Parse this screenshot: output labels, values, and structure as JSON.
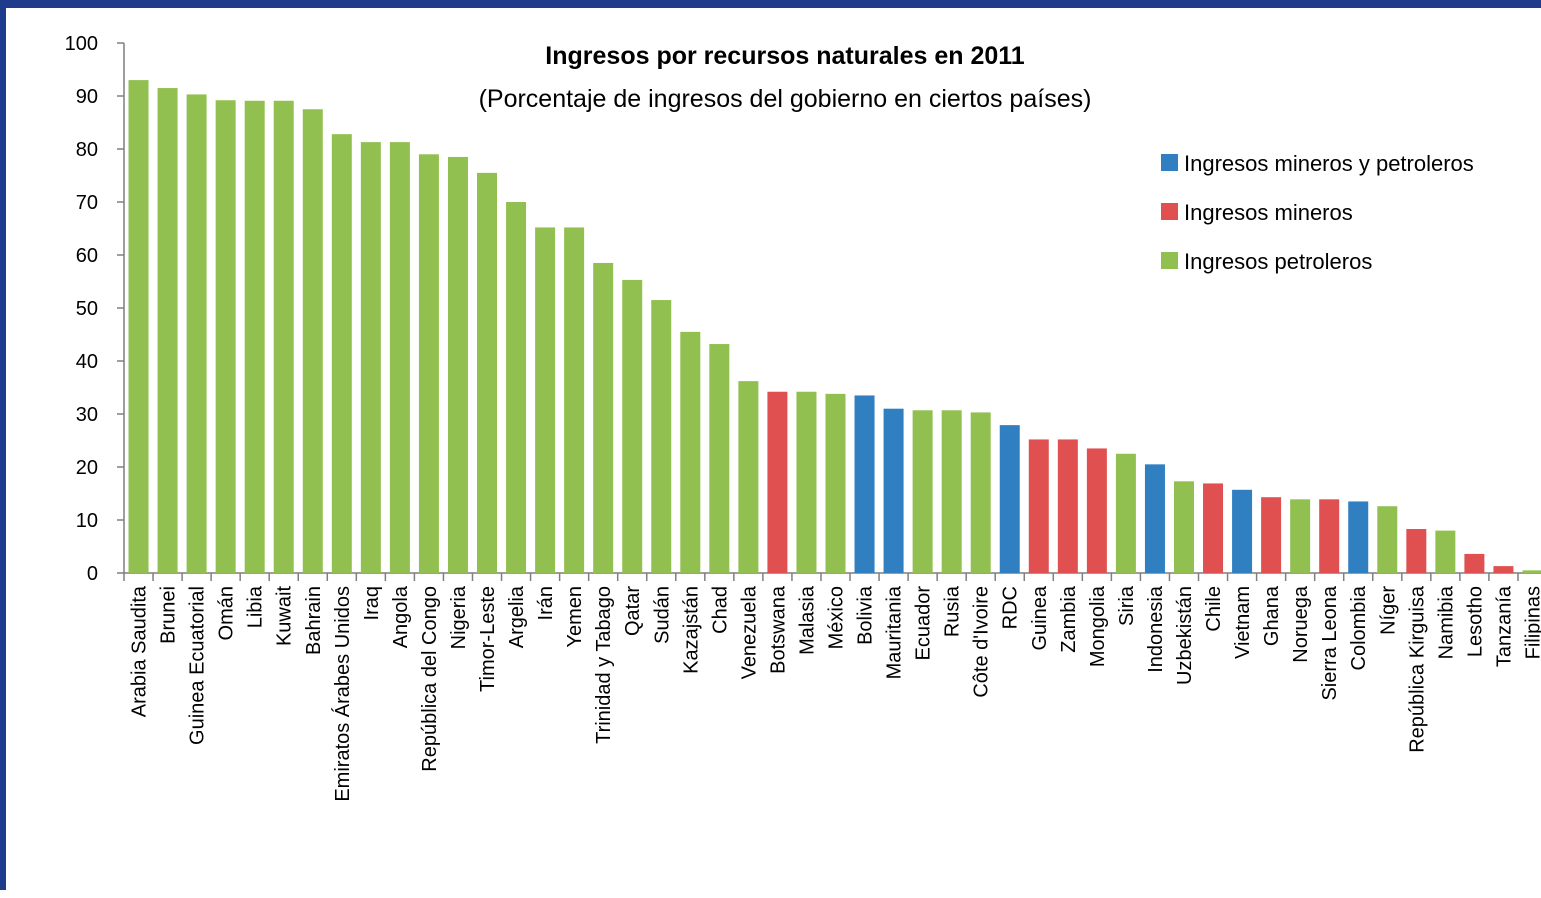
{
  "chart_data": {
    "type": "bar",
    "title": "Ingresos por recursos naturales en 2011",
    "subtitle": "(Porcentaje de ingresos del gobierno en ciertos países)",
    "xlabel": "",
    "ylabel": "",
    "ylim": [
      0,
      100
    ],
    "yticks": [
      0,
      10,
      20,
      30,
      40,
      50,
      60,
      70,
      80,
      90,
      100
    ],
    "grid": false,
    "legend_position": "right",
    "series": [
      {
        "key": "mp",
        "name": "Ingresos mineros y petroleros",
        "color": "#2f7fc1"
      },
      {
        "key": "m",
        "name": "Ingresos mineros",
        "color": "#e05050"
      },
      {
        "key": "p",
        "name": "Ingresos petroleros",
        "color": "#92c050"
      }
    ],
    "categories": [
      "Arabia Saudita",
      "Brunei",
      "Guinea Ecuatorial",
      "Omán",
      "Libia",
      "Kuwait",
      "Bahrain",
      "Emiratos Árabes Unidos",
      "Iraq",
      "Angola",
      "República del Congo",
      "Nigeria",
      "Timor-Leste",
      "Argelia",
      "Irán",
      "Yemen",
      "Trinidad y Tabago",
      "Qatar",
      "Sudán",
      "Kazajstán",
      "Chad",
      "Venezuela",
      "Botswana",
      "Malasia",
      "México",
      "Bolivia",
      "Mauritania",
      "Ecuador",
      "Rusia",
      "Côte d'Ivoire",
      "RDC",
      "Guinea",
      "Zambia",
      "Mongolia",
      "Siria",
      "Indonesia",
      "Uzbekistán",
      "Chile",
      "Vietnam",
      "Ghana",
      "Noruega",
      "Sierra Leona",
      "Colombia",
      "Níger",
      "República Kirguisa",
      "Namibia",
      "Lesotho",
      "Tanzanía",
      "Filipinas"
    ],
    "values": [
      93,
      91.5,
      90.3,
      89.2,
      89.1,
      89.1,
      87.5,
      82.8,
      81.3,
      81.3,
      79,
      78.5,
      75.5,
      70,
      65.2,
      65.2,
      58.5,
      55.3,
      51.5,
      45.5,
      43.2,
      36.2,
      34.2,
      34.2,
      33.8,
      33.5,
      31,
      30.7,
      30.7,
      30.3,
      27.9,
      25.2,
      25.2,
      23.5,
      22.5,
      20.5,
      17.3,
      16.9,
      15.7,
      14.3,
      13.9,
      13.9,
      13.5,
      12.6,
      8.3,
      8,
      3.6,
      1.3,
      0.5
    ],
    "series_of_category": [
      "p",
      "p",
      "p",
      "p",
      "p",
      "p",
      "p",
      "p",
      "p",
      "p",
      "p",
      "p",
      "p",
      "p",
      "p",
      "p",
      "p",
      "p",
      "p",
      "p",
      "p",
      "p",
      "m",
      "p",
      "p",
      "mp",
      "mp",
      "p",
      "p",
      "p",
      "mp",
      "m",
      "m",
      "m",
      "p",
      "mp",
      "p",
      "m",
      "mp",
      "m",
      "p",
      "m",
      "mp",
      "p",
      "m",
      "p",
      "m",
      "m",
      "p"
    ]
  }
}
